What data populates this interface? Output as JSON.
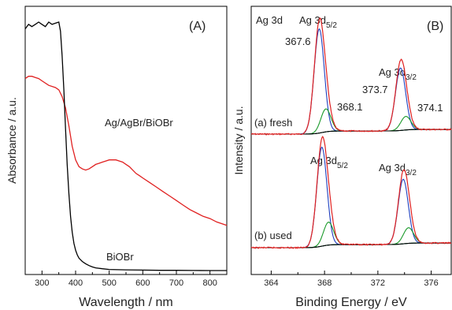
{
  "chart_data": [
    {
      "type": "line",
      "panel_label": "(A)",
      "xlabel": "Wavelength / nm",
      "ylabel": "Absorbance / a.u.",
      "xlim": [
        250,
        850
      ],
      "xticks": [
        "300",
        "400",
        "500",
        "600",
        "700",
        "800"
      ],
      "yticks_shown": false,
      "series": [
        {
          "name": "Ag/AgBr/BiOBr",
          "color": "#e02020",
          "x": [
            250,
            260,
            270,
            280,
            290,
            300,
            320,
            340,
            350,
            360,
            370,
            380,
            390,
            400,
            410,
            420,
            430,
            440,
            450,
            460,
            470,
            480,
            490,
            500,
            510,
            520,
            530,
            540,
            550,
            560,
            570,
            580,
            590,
            600,
            620,
            640,
            660,
            680,
            700,
            720,
            740,
            760,
            780,
            800,
            820,
            840,
            850
          ],
          "y": [
            0.85,
            0.86,
            0.86,
            0.855,
            0.85,
            0.84,
            0.82,
            0.81,
            0.8,
            0.77,
            0.72,
            0.64,
            0.55,
            0.49,
            0.46,
            0.45,
            0.445,
            0.45,
            0.46,
            0.47,
            0.475,
            0.48,
            0.485,
            0.49,
            0.49,
            0.49,
            0.485,
            0.48,
            0.47,
            0.46,
            0.445,
            0.43,
            0.42,
            0.41,
            0.39,
            0.37,
            0.35,
            0.33,
            0.31,
            0.29,
            0.27,
            0.255,
            0.24,
            0.23,
            0.215,
            0.205,
            0.2
          ]
        },
        {
          "name": "BiOBr",
          "color": "#000000",
          "x": [
            250,
            260,
            270,
            280,
            290,
            300,
            310,
            320,
            330,
            340,
            350,
            355,
            360,
            365,
            370,
            375,
            380,
            385,
            390,
            395,
            400,
            405,
            410,
            420,
            430,
            440,
            450,
            460,
            480,
            500,
            550,
            600,
            650,
            700,
            750,
            800,
            850
          ],
          "y": [
            1.07,
            1.09,
            1.08,
            1.09,
            1.1,
            1.09,
            1.08,
            1.1,
            1.09,
            1.095,
            1.1,
            1.06,
            0.95,
            0.8,
            0.63,
            0.47,
            0.34,
            0.24,
            0.17,
            0.12,
            0.09,
            0.07,
            0.055,
            0.04,
            0.03,
            0.022,
            0.016,
            0.012,
            0.008,
            0.005,
            0.003,
            0.002,
            0.001,
            0.001,
            0.0005,
            0.0,
            0.0
          ]
        }
      ],
      "annotations": [
        "Ag/AgBr/BiOBr",
        "BiOBr"
      ]
    },
    {
      "type": "line",
      "panel_label": "(B)",
      "xlabel": "Binding Energy / eV",
      "ylabel": "Intensity / a.u.",
      "xlim": [
        362.5,
        377.5
      ],
      "xticks": [
        "364",
        "368",
        "372",
        "376"
      ],
      "yticks_shown": false,
      "title_text": "Ag 3d",
      "spectra": [
        {
          "label": "(a) fresh",
          "offset": 1.0,
          "peaks": [
            {
              "center": 367.6,
              "height": 1.0,
              "color": "#1f3fbf",
              "label": "367.6"
            },
            {
              "center": 368.1,
              "height": 0.22,
              "color": "#1a9a2a",
              "label": "368.1"
            },
            {
              "center": 373.7,
              "height": 0.6,
              "color": "#1f3fbf",
              "label": "373.7"
            },
            {
              "center": 374.1,
              "height": 0.13,
              "color": "#1a9a2a",
              "label": "374.1"
            }
          ],
          "peak_titles": [
            {
              "main": "Ag 3d",
              "sub": "5/2"
            },
            {
              "main": "Ag 3d",
              "sub": "3/2"
            }
          ]
        },
        {
          "label": "(b) used",
          "offset": 0.0,
          "peaks": [
            {
              "center": 367.8,
              "height": 0.95,
              "color": "#1f3fbf"
            },
            {
              "center": 368.3,
              "height": 0.22,
              "color": "#1a9a2a"
            },
            {
              "center": 373.9,
              "height": 0.62,
              "color": "#1f3fbf"
            },
            {
              "center": 374.3,
              "height": 0.15,
              "color": "#1a9a2a"
            }
          ],
          "peak_titles": [
            {
              "main": "Ag 3d",
              "sub": "5/2"
            },
            {
              "main": "Ag 3d",
              "sub": "3/2"
            }
          ]
        }
      ],
      "envelope_color": "#e02020",
      "baseline_color": "#000000"
    }
  ]
}
